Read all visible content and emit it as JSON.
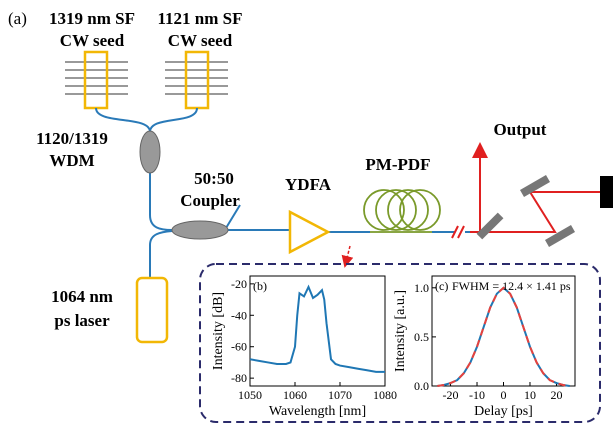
{
  "diagram": {
    "panel": "(a)",
    "seed1": [
      "1319 nm SF",
      "CW seed"
    ],
    "seed2": [
      "1121 nm SF",
      "CW seed"
    ],
    "wdm": [
      "1120/1319",
      "WDM"
    ],
    "coupler": [
      "50:50",
      "Coupler"
    ],
    "amplifier": "YDFA",
    "fiber": "PM-PDF",
    "output": "Output",
    "laser": [
      "1064 nm",
      "ps laser"
    ]
  },
  "chart_data": [
    {
      "type": "line",
      "panel_label": "(b)",
      "xlabel": "Wavelength [nm]",
      "ylabel": "Intensity [dB]",
      "x": [
        1050,
        1052,
        1054,
        1056,
        1058,
        1059,
        1060,
        1060.5,
        1061,
        1062,
        1063,
        1064,
        1065,
        1066,
        1066.5,
        1067,
        1068,
        1069,
        1070,
        1072,
        1074,
        1076,
        1078,
        1080
      ],
      "series": [
        {
          "color": "#1f77b4",
          "values": [
            -68,
            -69,
            -70,
            -71,
            -71,
            -70,
            -60,
            -40,
            -26,
            -28,
            -22,
            -29,
            -27,
            -24,
            -30,
            -45,
            -68,
            -71,
            -72,
            -73,
            -74,
            -75,
            -76,
            -76
          ]
        }
      ],
      "xlim": [
        1050,
        1080
      ],
      "ylim": [
        -85,
        -15
      ],
      "xticks": [
        1050,
        1060,
        1070,
        1080
      ],
      "yticks": [
        -80,
        -60,
        -40,
        -20
      ]
    },
    {
      "type": "line",
      "panel_label": "(c)",
      "annotation": "FWHM = 12.4 × 1.41 ps",
      "xlabel": "Delay [ps]",
      "ylabel": "Intensity [a.u.]",
      "x": [
        -25,
        -22.5,
        -20,
        -17.5,
        -15,
        -12.5,
        -10,
        -7.5,
        -5,
        -2.5,
        0,
        2.5,
        5,
        7.5,
        10,
        12.5,
        15,
        17.5,
        20,
        22.5,
        25
      ],
      "series": [
        {
          "color": "#1f77b4",
          "values": [
            0,
            0.01,
            0.03,
            0.06,
            0.13,
            0.24,
            0.4,
            0.6,
            0.8,
            0.94,
            1,
            0.94,
            0.8,
            0.6,
            0.4,
            0.24,
            0.13,
            0.06,
            0.03,
            0.01,
            0
          ]
        },
        {
          "color": "#e8413c",
          "dash": true,
          "values": [
            0,
            0.01,
            0.03,
            0.06,
            0.13,
            0.24,
            0.4,
            0.6,
            0.8,
            0.94,
            1,
            0.94,
            0.8,
            0.6,
            0.4,
            0.24,
            0.13,
            0.06,
            0.03,
            0.01,
            0
          ]
        }
      ],
      "xlim": [
        -27,
        27
      ],
      "ylim": [
        0,
        1.12
      ],
      "xticks": [
        -20,
        -10,
        0,
        10,
        20
      ],
      "yticks": [
        {
          "value": 0,
          "label": "0.0"
        },
        0.5,
        {
          "value": 1,
          "label": "1.0"
        }
      ]
    }
  ]
}
